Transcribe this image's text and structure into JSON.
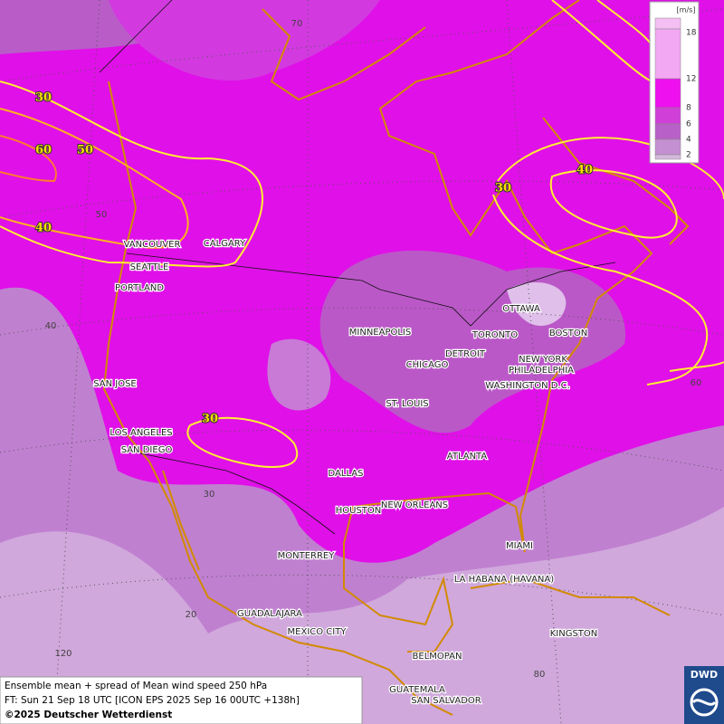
{
  "legend": {
    "unit": "[m/s]",
    "levels": [
      {
        "value": 18,
        "color": "#f2a8f2"
      },
      {
        "value": 12,
        "color": "#ee10ee"
      },
      {
        "value": 8,
        "color": "#d040d8"
      },
      {
        "value": 6,
        "color": "#b860c8"
      },
      {
        "value": 4,
        "color": "#c490d2"
      },
      {
        "value": 2,
        "color": "#d6b8de"
      }
    ]
  },
  "contour_labels": [
    30,
    60,
    50,
    40,
    30,
    40,
    30
  ],
  "grid_labels": [
    70,
    50,
    40,
    30,
    20,
    120,
    80,
    60
  ],
  "cities": [
    "VANCOUVER",
    "CALGARY",
    "SEATTLE",
    "PORTLAND",
    "MINNEAPOLIS",
    "OTTAWA",
    "TORONTO",
    "BOSTON",
    "DETROIT",
    "NEW YORK",
    "CHICAGO",
    "PHILADELPHIA",
    "WASHINGTON D.C.",
    "SAN JOSE",
    "ST. LOUIS",
    "LOS ANGELES",
    "SAN DIEGO",
    "ATLANTA",
    "DALLAS",
    "NEW ORLEANS",
    "HOUSTON",
    "MIAMI",
    "MONTERREY",
    "LA HABANA (HAVANA)",
    "GUADALAJARA",
    "MEXICO CITY",
    "KINGSTON",
    "BELMOPAN",
    "GUATEMALA",
    "SAN SALVADOR"
  ],
  "footer": [
    "Ensemble mean + spread of Mean wind speed 250 hPa",
    "FT: Sun 21 Sep 18 UTC [ICON EPS 2025 Sep 16 00UTC +138h]",
    "©2025 Deutscher Wetterdienst"
  ],
  "logo": "DWD"
}
